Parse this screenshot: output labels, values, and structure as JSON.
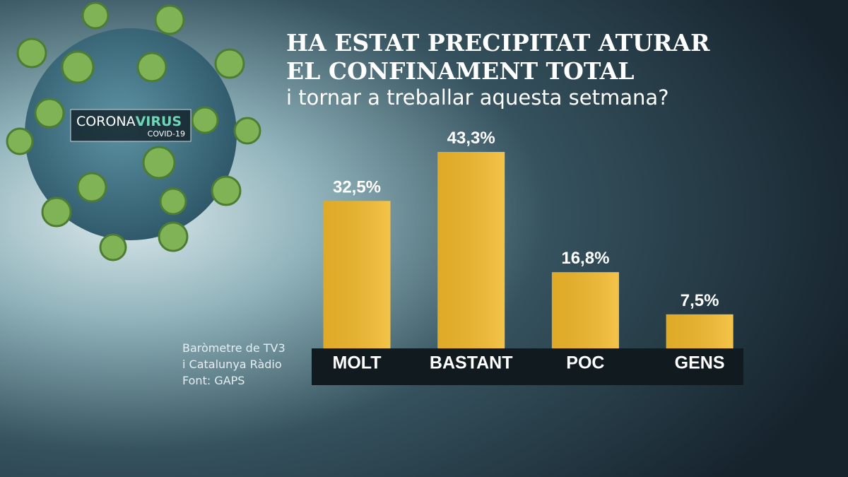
{
  "chart_data": {
    "type": "bar",
    "title": [
      "HA ESTAT PRECIPITAT ATURAR",
      "EL CONFINAMENT TOTAL"
    ],
    "subtitle": "i tornar a treballar aquesta setmana?",
    "categories": [
      "MOLT",
      "BASTANT",
      "POC",
      "GENS"
    ],
    "values": [
      32.5,
      43.3,
      16.8,
      7.5
    ],
    "value_labels": [
      "32,5%",
      "43,3%",
      "16,8%",
      "7,5%"
    ],
    "color": "#f2b92a",
    "source": [
      "Baròmetre de TV3",
      "i Catalunya Ràdio",
      "Font: GAPS"
    ],
    "logo": {
      "word1": "CORONA",
      "word2": "VIRUS",
      "sub": "COVID-19"
    }
  }
}
